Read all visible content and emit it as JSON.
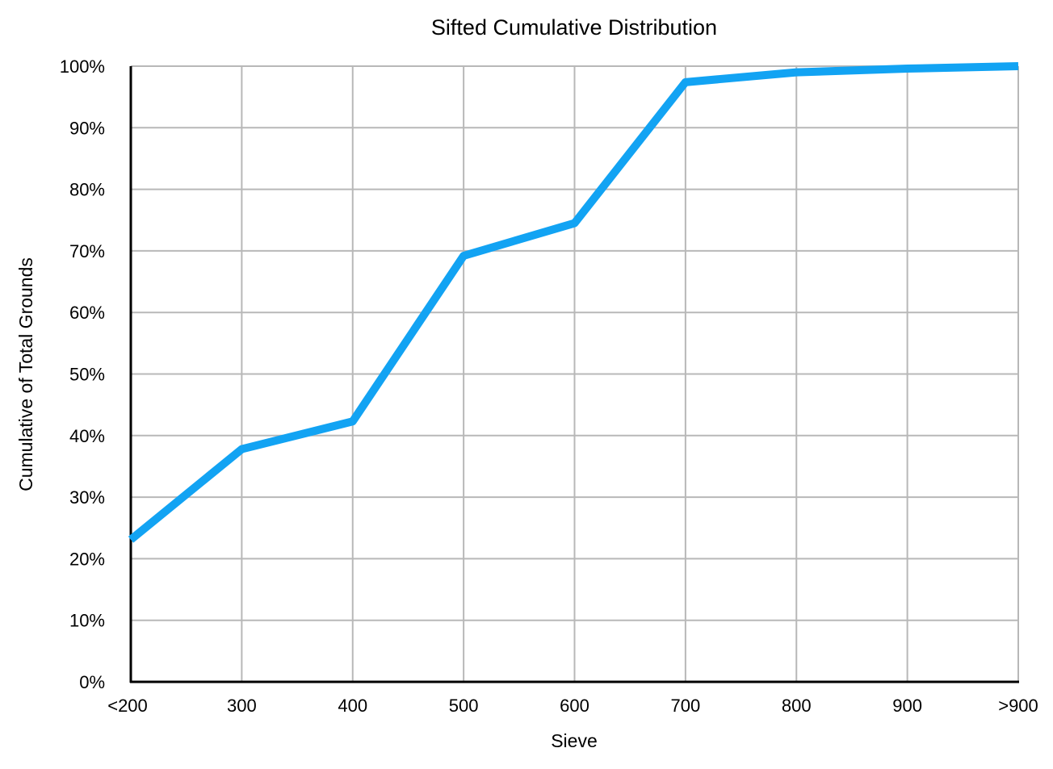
{
  "chart_data": {
    "type": "line",
    "title": "Sifted Cumulative Distribution",
    "xlabel": "Sieve",
    "ylabel": "Cumulative of Total Grounds",
    "categories": [
      "<200",
      "300",
      "400",
      "500",
      "600",
      "700",
      "800",
      "900",
      ">900"
    ],
    "series": [
      {
        "values": [
          23.1,
          37.8,
          42.3,
          69.2,
          74.5,
          97.4,
          99.0,
          99.6,
          100.0
        ]
      }
    ],
    "ylim": [
      0,
      100
    ],
    "yticks": [
      0,
      10,
      20,
      30,
      40,
      50,
      60,
      70,
      80,
      90,
      100
    ],
    "ytick_labels": [
      "0%",
      "10%",
      "20%",
      "30%",
      "40%",
      "50%",
      "60%",
      "70%",
      "80%",
      "90%",
      "100%"
    ],
    "grid": true,
    "legend": "none",
    "colors": {
      "line": "#12a3f3",
      "grid": "#b8b8b8",
      "axis": "#000000"
    }
  }
}
